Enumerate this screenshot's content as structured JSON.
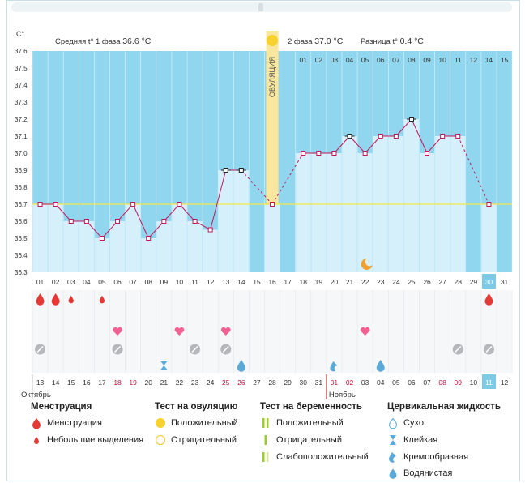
{
  "unit_label": "C°",
  "phase1_label": "Средняя t° 1 фаза",
  "phase1_value": "36.6 °C",
  "phase2_label": "2 фаза",
  "phase2_value": "37.0 °C",
  "diff_label": "Разница t°",
  "diff_value": "0.4 °C",
  "ovulation_label": "ОВУЛЯЦИЯ",
  "month1": "Октябрь",
  "month2": "Ноябрь",
  "colors": {
    "bg_blue": "#8fd6ee",
    "bar": "#d6f0fb",
    "line": "#c2185b",
    "ovulation": "#f9e79f",
    "accent": "#7ec9e3",
    "weekend": "#c0143c"
  },
  "chart_data": {
    "type": "line",
    "title": "",
    "ylabel": "C°",
    "ylim": [
      36.3,
      37.6
    ],
    "yticks": [
      "37.6",
      "37.5",
      "37.4",
      "37.3",
      "37.2",
      "37.1",
      "37.0",
      "36.9",
      "36.8",
      "36.7",
      "36.6",
      "36.5",
      "36.4",
      "36.3"
    ],
    "cycle_days": [
      "01",
      "02",
      "03",
      "04",
      "05",
      "06",
      "07",
      "08",
      "09",
      "10",
      "11",
      "12",
      "13",
      "14",
      "15",
      "16",
      "17",
      "18",
      "19",
      "20",
      "21",
      "22",
      "23",
      "24",
      "25",
      "26",
      "27",
      "28",
      "29",
      "30",
      "31"
    ],
    "top_days": [
      "01",
      "02",
      "03",
      "04",
      "05",
      "06",
      "07",
      "08",
      "09",
      "10",
      "11",
      "12",
      "14",
      "15"
    ],
    "dates": [
      "13",
      "14",
      "15",
      "16",
      "17",
      "18",
      "19",
      "20",
      "21",
      "22",
      "23",
      "24",
      "25",
      "26",
      "27",
      "28",
      "29",
      "30",
      "31",
      "01",
      "02",
      "03",
      "04",
      "05",
      "06",
      "07",
      "08",
      "09",
      "10",
      "11",
      "12"
    ],
    "temperatures": [
      36.7,
      36.7,
      36.6,
      36.6,
      36.5,
      36.6,
      36.7,
      36.5,
      36.6,
      36.7,
      36.6,
      36.55,
      36.9,
      36.9,
      null,
      36.7,
      null,
      37.0,
      37.0,
      37.0,
      37.1,
      37.0,
      37.1,
      37.1,
      37.2,
      37.0,
      37.1,
      37.1,
      null,
      36.7,
      null
    ],
    "coverline": 36.7,
    "ovulation_day": 16,
    "today_day": 30
  },
  "legend": {
    "menstruation": {
      "title": "Менструация",
      "items": [
        "Менструация",
        "Небольшие выделения"
      ]
    },
    "ovulation_test": {
      "title": "Тест на овуляцию",
      "items": [
        "Положительный",
        "Отрицательный"
      ]
    },
    "pregnancy_test": {
      "title": "Тест на беременность",
      "items": [
        "Положительный",
        "Отрицательный",
        "Слабоположительный"
      ]
    },
    "cervical": {
      "title": "Цервикальная жидкость",
      "items": [
        "Сухо",
        "Клейкая",
        "Кремообразная",
        "Водянистая"
      ]
    }
  },
  "icon_names": [
    "heavy-drop-icon",
    "small-drop-icon",
    "heart-icon",
    "no-icon",
    "sticky-icon",
    "creamy-icon",
    "watery-icon",
    "moon-icon",
    "sun-icon"
  ]
}
